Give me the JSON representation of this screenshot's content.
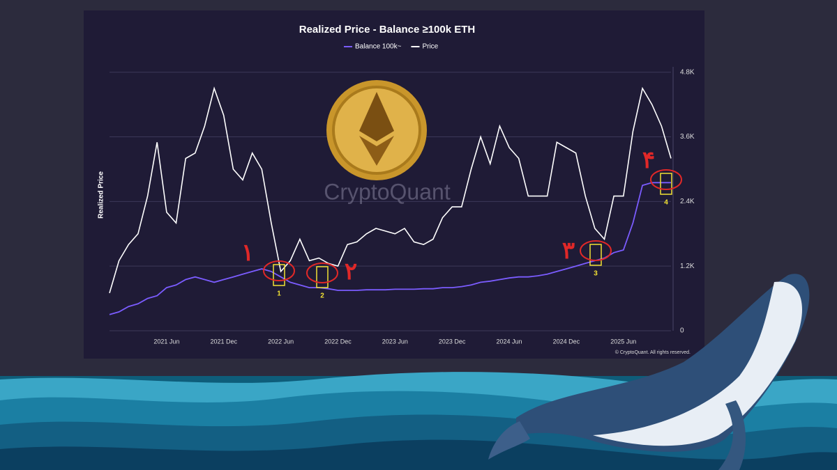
{
  "chart_data": {
    "type": "line",
    "title": "Realized Price - Balance ≥100k ETH",
    "y_label": "Realized Price",
    "watermark": "CryptoQuant",
    "copyright": "© CryptoQuant. All rights reserved.",
    "categories": [
      null,
      null,
      null,
      null,
      null,
      null,
      "2021 Jun",
      null,
      null,
      null,
      null,
      null,
      "2021 Dec",
      null,
      null,
      null,
      null,
      null,
      "2022 Jun",
      null,
      null,
      null,
      null,
      null,
      "2022 Dec",
      null,
      null,
      null,
      null,
      null,
      "2023 Jun",
      null,
      null,
      null,
      null,
      null,
      "2023 Dec",
      null,
      null,
      null,
      null,
      null,
      "2024 Jun",
      null,
      null,
      null,
      null,
      null,
      "2024 Dec",
      null,
      null,
      null,
      null,
      null,
      "2025 Jun",
      null,
      null,
      null,
      null,
      null
    ],
    "series": [
      {
        "name": "Balance 100k~",
        "color": "#7b5cff",
        "values": [
          300,
          350,
          450,
          500,
          600,
          650,
          800,
          850,
          950,
          1000,
          950,
          900,
          950,
          1000,
          1050,
          1100,
          1150,
          1100,
          1000,
          900,
          850,
          800,
          800,
          780,
          750,
          750,
          750,
          760,
          760,
          760,
          770,
          770,
          770,
          780,
          780,
          800,
          800,
          820,
          850,
          900,
          920,
          950,
          980,
          1000,
          1000,
          1020,
          1050,
          1100,
          1150,
          1200,
          1250,
          1300,
          1350,
          1450,
          1500,
          2000,
          2700,
          2750,
          2750,
          2750
        ]
      },
      {
        "name": "Price",
        "color": "#ffffff",
        "values": [
          700,
          1300,
          1600,
          1800,
          2500,
          3500,
          2200,
          2000,
          3200,
          3300,
          3800,
          4500,
          4000,
          3000,
          2800,
          3300,
          3000,
          2000,
          1100,
          1300,
          1700,
          1300,
          1350,
          1250,
          1200,
          1600,
          1650,
          1800,
          1900,
          1850,
          1800,
          1900,
          1650,
          1600,
          1700,
          2100,
          2300,
          2300,
          3000,
          3600,
          3100,
          3800,
          3400,
          3200,
          2500,
          2500,
          2500,
          3500,
          3400,
          3300,
          2500,
          1900,
          1700,
          2500,
          2500,
          3700,
          4500,
          4200,
          3800,
          3200
        ]
      }
    ],
    "ylim": [
      0,
      4900
    ],
    "yticks": [
      0,
      {
        "value": 1200,
        "label": "1.2K"
      },
      {
        "value": 2400,
        "label": "2.4K"
      },
      {
        "value": 3600,
        "label": "3.6K"
      },
      {
        "value": 4800,
        "label": "4.8K"
      }
    ],
    "grid": true,
    "annotations": [
      {
        "label": "1",
        "note": "۱"
      },
      {
        "label": "2",
        "note": "۲"
      },
      {
        "label": "3",
        "note": "۳"
      },
      {
        "label": "4",
        "note": "۴"
      }
    ]
  }
}
